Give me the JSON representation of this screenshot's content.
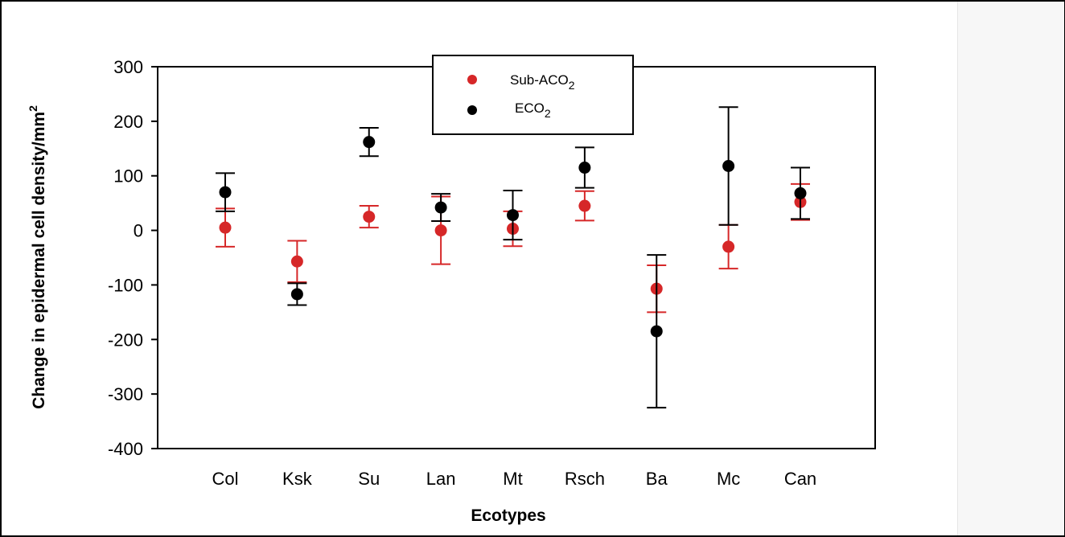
{
  "colors": {
    "series_1": "#d62728",
    "series_2": "#000000",
    "axis": "#000000"
  },
  "chart_data": {
    "type": "scatter",
    "xlabel": "Ecotypes",
    "ylabel": "Change in epidermal cell density/mm",
    "ylabel_superscript": "2",
    "ylim": [
      -400,
      300
    ],
    "yticks": [
      "300",
      "200",
      "100",
      "0",
      "-100",
      "-200",
      "-300",
      "-400"
    ],
    "categories": [
      "Col",
      "Ksk",
      "Su",
      "Lan",
      "Mt",
      "Rsch",
      "Ba",
      "Mc",
      "Can"
    ],
    "legend_position": "top-center",
    "series": [
      {
        "name": "Sub-ACO",
        "name_subscript": "2",
        "color": "#d62728",
        "values": [
          5,
          -57,
          25,
          0,
          3,
          45,
          -107,
          -30,
          52
        ],
        "error": [
          35,
          38,
          20,
          62,
          32,
          27,
          43,
          40,
          33
        ]
      },
      {
        "name": "ECO",
        "name_subscript": "2",
        "color": "#000000",
        "values": [
          70,
          -117,
          162,
          42,
          28,
          115,
          -185,
          118,
          68
        ],
        "error": [
          35,
          20,
          26,
          25,
          45,
          37,
          140,
          108,
          47
        ]
      }
    ]
  }
}
